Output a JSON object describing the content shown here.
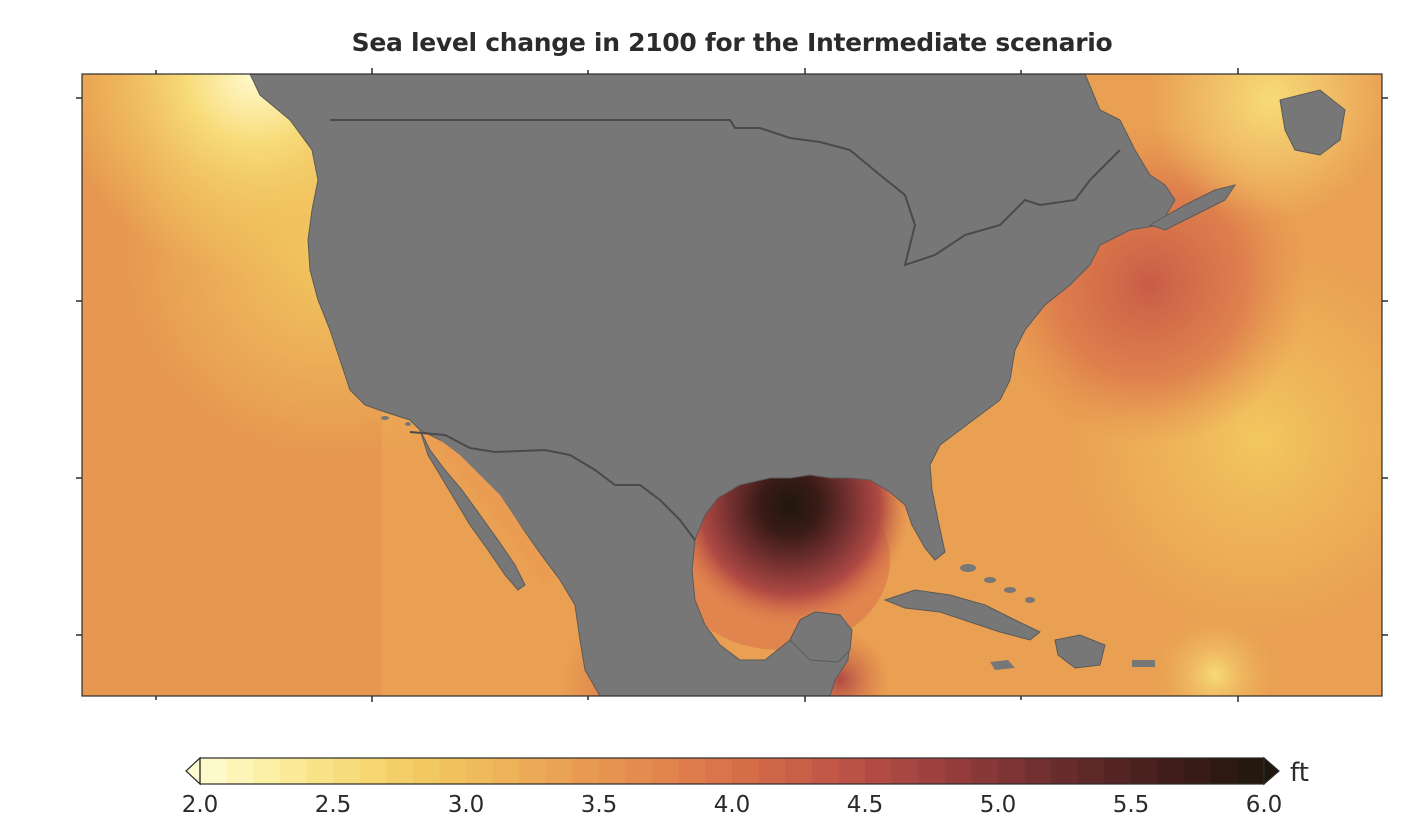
{
  "title": "Sea level change in 2100 for the Intermediate scenario",
  "colorbar": {
    "unit": "ft",
    "min": 2.0,
    "max": 6.0,
    "ticks": [
      "2.0",
      "2.5",
      "3.0",
      "3.5",
      "4.0",
      "4.5",
      "5.0",
      "5.5",
      "6.0"
    ],
    "extend": "both",
    "colors": [
      "#fffbd0",
      "#fbeea0",
      "#f7db78",
      "#f2c860",
      "#eeb358",
      "#e99c52",
      "#e3874e",
      "#d9704a",
      "#c85c47",
      "#b04a44",
      "#933c3c",
      "#743030",
      "#552524",
      "#3a1b17",
      "#1f170d"
    ]
  },
  "colors": {
    "land": "#777777",
    "border": "#4a4a4a",
    "ocean_base": "#e9a052"
  }
}
